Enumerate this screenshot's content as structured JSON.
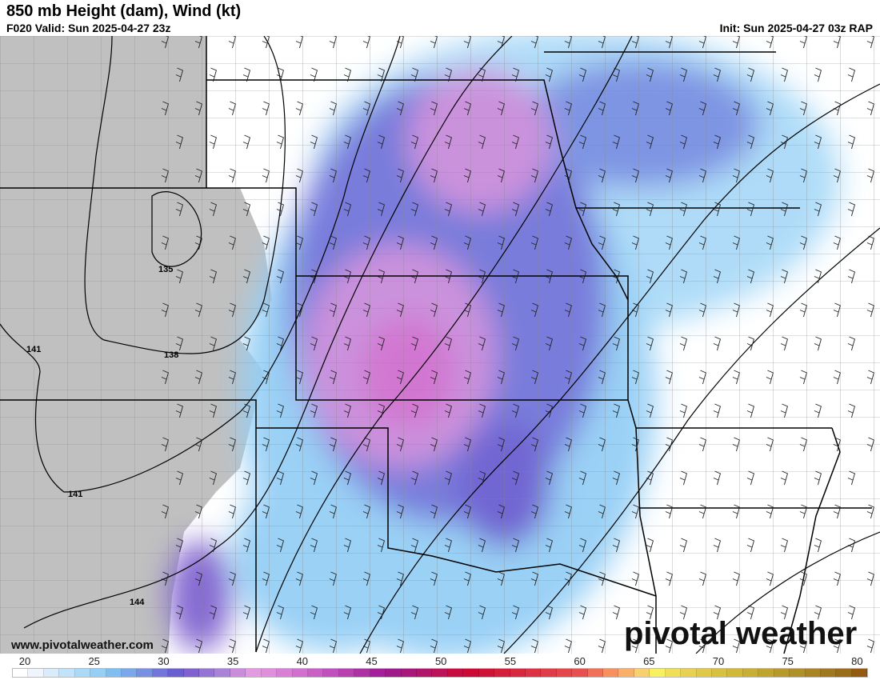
{
  "header": {
    "title": "850 mb Height (dam), Wind (kt)",
    "valid": "F020 Valid: Sun 2025-04-27 23z",
    "init": "Init: Sun 2025-04-27 03z RAP"
  },
  "map": {
    "contour_labels": [
      "135",
      "138",
      "141",
      "141",
      "144"
    ],
    "terrain_mask_color": "#c0c0c0",
    "state_border_color": "#000000",
    "county_border_color": "#888888"
  },
  "watermark": {
    "url": "www.pivotalweather.com",
    "logo": "pivotal weather"
  },
  "colorbar": {
    "unit": "kt",
    "ticks": [
      "20",
      "25",
      "30",
      "35",
      "40",
      "45",
      "50",
      "55",
      "60",
      "65",
      "70",
      "75",
      "80"
    ],
    "colors": [
      "#ffffff",
      "#eef5fd",
      "#d8ecfb",
      "#c2e4fa",
      "#abdaf8",
      "#95cff5",
      "#80bdf0",
      "#7aa8ea",
      "#7890e2",
      "#7276da",
      "#6a5fd0",
      "#7f62cf",
      "#9574d3",
      "#aa82d8",
      "#c98ddb",
      "#e29be0",
      "#e08fdc",
      "#d87fd6",
      "#d070cf",
      "#c860c6",
      "#c050bd",
      "#b840b0",
      "#ae30a5",
      "#a4209a",
      "#a01a8a",
      "#a8187a",
      "#b0166a",
      "#bb125a",
      "#c80c40",
      "#cc0a35",
      "#d01438",
      "#d41e3c",
      "#d82840",
      "#dc3244",
      "#e03c48",
      "#e4464c",
      "#e85050",
      "#f07058",
      "#f8905e",
      "#f8b068",
      "#f8d070",
      "#f8f060",
      "#f0e058",
      "#e8d050",
      "#e0c848",
      "#d8c040",
      "#d0b838",
      "#c8ae34",
      "#c0a430",
      "#b89a2c",
      "#b09028",
      "#a88424",
      "#a07820",
      "#9a6c1a",
      "#945a10"
    ]
  }
}
